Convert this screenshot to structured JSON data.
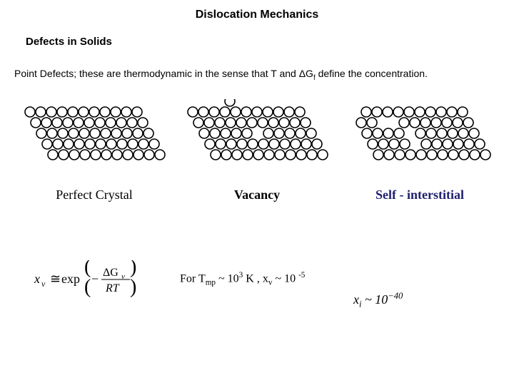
{
  "title": "Dislocation Mechanics",
  "subtitle": "Defects in Solids",
  "description_prefix": "Point Defects; these are thermodynamic in the sense that T and ΔG",
  "description_sub": "f",
  "description_suffix": " define the concentration.",
  "labels": {
    "perfect": "Perfect Crystal",
    "vacancy": "Vacancy",
    "selfint": "Self - interstitial"
  },
  "eq_mid": {
    "p1": "For T",
    "sub1": "mp",
    "p2": "~ 10",
    "sup1": "3",
    "p3": " K , x",
    "sub2": "v",
    "p4": " ~ 10 ",
    "sup2": "-5"
  },
  "eq_right": {
    "p1": "x",
    "sub1": "i",
    "p2": " ~ 10",
    "sup1": "−40"
  },
  "atom": {
    "r": 7,
    "stroke": "#000000",
    "strokeWidth": 1.6,
    "fill": "#ffffff",
    "row_dy": 15,
    "col_dx": 15,
    "shear_dx": 8
  },
  "lattice": {
    "rows": 5,
    "cols": 11,
    "baseX": 10,
    "baseY": 18
  },
  "vacancy": {
    "missing_row": 2,
    "missing_col": 5,
    "extra_top": {
      "row": -1,
      "col": 4
    }
  },
  "selfint": {
    "missing_atoms": [
      [
        0,
        0
      ],
      [
        1,
        2
      ],
      [
        1,
        3
      ],
      [
        2,
        4
      ],
      [
        3,
        4
      ]
    ]
  }
}
